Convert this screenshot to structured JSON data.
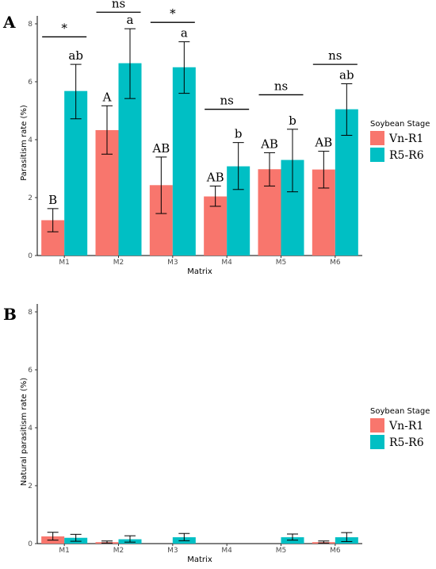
{
  "colors": {
    "vn": "#f8766d",
    "r5": "#00bfc4"
  },
  "chart_data": [
    {
      "type": "bar",
      "panel_label": "A",
      "categories": [
        "M1",
        "M2",
        "M3",
        "M4",
        "M5",
        "M6"
      ],
      "xlabel": "Matrix",
      "ylabel": "Parasitism rate (%)",
      "ylim": [
        0,
        8
      ],
      "yticks": [
        0,
        2,
        4,
        6,
        8
      ],
      "grid": false,
      "legend": {
        "title": "Soybean Stage",
        "position": "right"
      },
      "series": [
        {
          "name": "Vn-R1",
          "values": [
            1.22,
            4.33,
            2.43,
            2.04,
            2.98,
            2.97
          ],
          "err_low": [
            0.82,
            3.5,
            1.45,
            1.7,
            2.4,
            2.33
          ],
          "err_high": [
            1.62,
            5.17,
            3.4,
            2.4,
            3.55,
            3.6
          ],
          "labels": [
            "B",
            "A",
            "AB",
            "AB",
            "AB",
            "AB"
          ]
        },
        {
          "name": "R5-R6",
          "values": [
            5.68,
            6.64,
            6.5,
            3.08,
            3.3,
            5.05
          ],
          "err_low": [
            4.72,
            5.42,
            5.6,
            2.28,
            2.2,
            4.15
          ],
          "err_high": [
            6.6,
            7.83,
            7.38,
            3.9,
            4.36,
            5.93
          ],
          "labels": [
            "ab",
            "a",
            "a",
            "b",
            "b",
            "ab"
          ]
        }
      ],
      "comparisons": [
        "*",
        "ns",
        "*",
        "ns",
        "ns",
        "ns"
      ],
      "comparison_y": [
        7.55,
        8.4,
        8.05,
        5.05,
        5.55,
        6.6
      ]
    },
    {
      "type": "bar",
      "panel_label": "B",
      "categories": [
        "M1",
        "M2",
        "M3",
        "M4",
        "M5",
        "M6"
      ],
      "xlabel": "Matrix",
      "ylabel": "Natural parasitism rate (%)",
      "ylim": [
        0,
        8
      ],
      "yticks": [
        0,
        2,
        4,
        6,
        8
      ],
      "grid": false,
      "legend": {
        "title": "Soybean Stage",
        "position": "right"
      },
      "series": [
        {
          "name": "Vn-R1",
          "values": [
            0.25,
            0.05,
            0,
            0,
            0,
            0.05
          ],
          "err_low": [
            0.12,
            0.02,
            null,
            null,
            null,
            0.02
          ],
          "err_high": [
            0.39,
            0.09,
            null,
            null,
            null,
            0.09
          ]
        },
        {
          "name": "R5-R6",
          "values": [
            0.2,
            0.15,
            0.22,
            0,
            0.22,
            0.22
          ],
          "err_low": [
            0.08,
            0.05,
            0.1,
            null,
            0.12,
            0.07
          ],
          "err_high": [
            0.32,
            0.27,
            0.35,
            null,
            0.33,
            0.38
          ]
        }
      ]
    }
  ]
}
